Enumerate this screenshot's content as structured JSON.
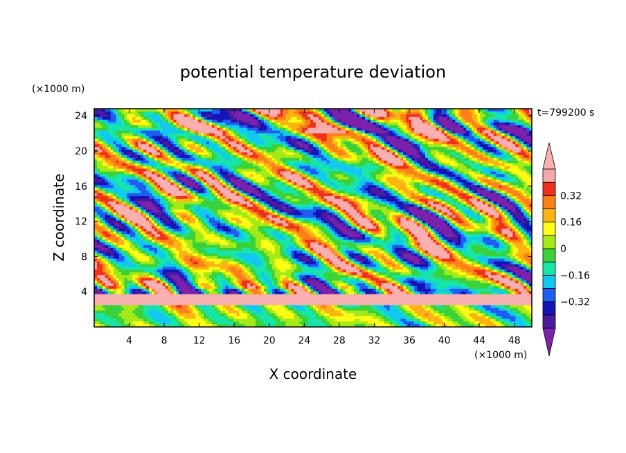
{
  "chart_data": {
    "type": "heatmap",
    "title": "potential temperature deviation",
    "xlabel": "X coordinate",
    "ylabel": "Z coordinate",
    "x_unit": "(×1000 m)",
    "y_unit": "(×1000 m)",
    "time_label": "t=799200 s",
    "xlim": [
      0,
      50
    ],
    "ylim": [
      0,
      24.8
    ],
    "xticks": [
      4,
      8,
      12,
      16,
      20,
      24,
      28,
      32,
      36,
      40,
      44,
      48
    ],
    "yticks": [
      4,
      8,
      12,
      16,
      20,
      24
    ],
    "grid": false,
    "colorbar": {
      "levels": [
        -0.48,
        -0.4,
        -0.32,
        -0.24,
        -0.16,
        -0.08,
        0,
        0.08,
        0.16,
        0.24,
        0.32,
        0.4,
        0.48
      ],
      "colors": [
        "#7b22ad",
        "#4a1aa0",
        "#1514b4",
        "#1f5cf0",
        "#12c8f0",
        "#18e6a8",
        "#3ad23a",
        "#a4ea18",
        "#fcfc14",
        "#fcb414",
        "#fc8018",
        "#f03018",
        "#f4a8a8",
        "#f8b0b0"
      ],
      "tick_values": [
        0.32,
        0.16,
        0,
        -0.16,
        -0.32
      ],
      "tick_labels": [
        "0.32",
        "0.16",
        "0",
        "−0.16",
        "−0.32"
      ]
    }
  }
}
